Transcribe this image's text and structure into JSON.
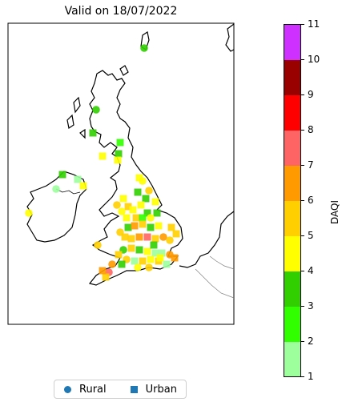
{
  "title": "Valid on 18/07/2022",
  "colorbar": {
    "label": "DAQI",
    "ticks": [
      "1",
      "2",
      "3",
      "4",
      "5",
      "6",
      "7",
      "8",
      "9",
      "10",
      "11"
    ],
    "bands": [
      {
        "from": 1,
        "to": 2,
        "color": "#9cff9c"
      },
      {
        "from": 2,
        "to": 3,
        "color": "#31ff00"
      },
      {
        "from": 3,
        "to": 4,
        "color": "#31cf00"
      },
      {
        "from": 4,
        "to": 5,
        "color": "#ffff00"
      },
      {
        "from": 5,
        "to": 6,
        "color": "#ffcf00"
      },
      {
        "from": 6,
        "to": 7,
        "color": "#ff9a00"
      },
      {
        "from": 7,
        "to": 8,
        "color": "#ff6464"
      },
      {
        "from": 8,
        "to": 9,
        "color": "#ff0000"
      },
      {
        "from": 9,
        "to": 10,
        "color": "#990000"
      },
      {
        "from": 10,
        "to": 11,
        "color": "#ce30ff"
      }
    ]
  },
  "legend": {
    "rural_label": "Rural",
    "urban_label": "Urban",
    "marker_color": "#1f77b4"
  }
}
